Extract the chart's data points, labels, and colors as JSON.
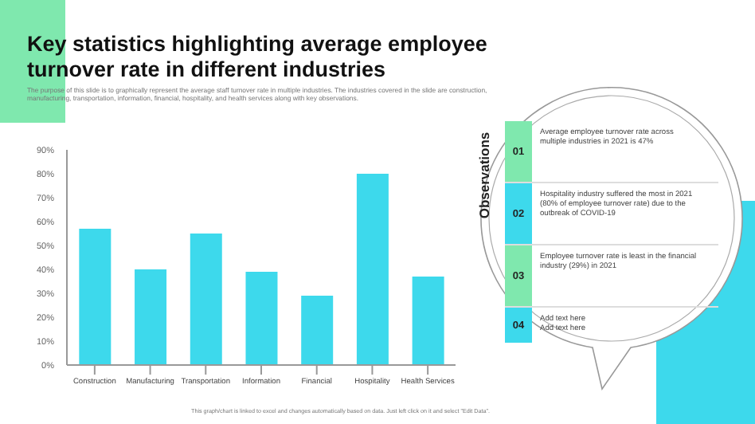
{
  "chart_data": {
    "type": "bar",
    "title": "Key statistics highlighting average employee turnover rate in different industries",
    "subtitle": "The purpose of this slide is to graphically represent the average staff turnover rate in multiple industries. The industries covered in the slide are construction, manufacturing, transportation, information, financial, hospitality, and health services along with key observations.",
    "categories": [
      "Construction",
      "Manufacturing",
      "Transportation",
      "Information",
      "Financial",
      "Hospitality",
      "Health Services"
    ],
    "values": [
      57,
      40,
      55,
      39,
      29,
      80,
      37
    ],
    "color": "#3dd9ec",
    "ylim": [
      0,
      90
    ],
    "yticks": [
      {
        "value": 0,
        "label": "0%"
      },
      {
        "value": 10,
        "label": "10%"
      },
      {
        "value": 20,
        "label": "20%"
      },
      {
        "value": 30,
        "label": "30%"
      },
      {
        "value": 40,
        "label": "40%"
      },
      {
        "value": 50,
        "label": "50%"
      },
      {
        "value": 60,
        "label": "60%"
      },
      {
        "value": 70,
        "label": "70%"
      },
      {
        "value": 80,
        "label": "80%"
      },
      {
        "value": 90,
        "label": "90%"
      }
    ],
    "grid": false,
    "legend": false,
    "annotations": [
      "Observations",
      "01",
      "Average employee turnover rate across multiple industries in 2021 is 47%",
      "02",
      "Hospitality industry suffered the most in 2021 (80% of employee turnover rate) due to the outbreak of COVID-19",
      "03",
      "Employee turnover rate is least in the financial industry (29%) in 2021",
      "04",
      "Add text here\nAdd text here",
      "This graph/chart is linked to excel and changes automatically based on data. Just left click on it and select \"Edit Data\"."
    ]
  }
}
